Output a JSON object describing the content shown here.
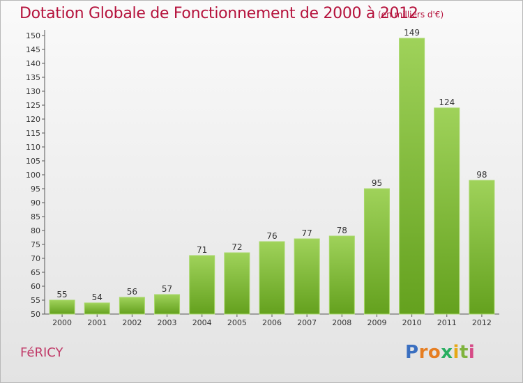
{
  "title": "Dotation Globale de Fonctionnement de 2000 à 2012",
  "subtitle": "(en milliers d'€)",
  "location": "FéRICY",
  "logo": {
    "letters": [
      "P",
      "r",
      "o",
      "x",
      "i",
      "t",
      "i"
    ],
    "colors": [
      "#3a6fc0",
      "#e67e22",
      "#e67e22",
      "#27ae60",
      "#e6a817",
      "#7fb33d",
      "#d64a86"
    ]
  },
  "colors": {
    "bar_light": "#9fd25a",
    "bar_dark": "#64a11e",
    "text": "#333333",
    "accent": "#b5123c"
  },
  "chart_data": {
    "type": "bar",
    "categories": [
      "2000",
      "2001",
      "2002",
      "2003",
      "2004",
      "2005",
      "2006",
      "2007",
      "2008",
      "2009",
      "2010",
      "2011",
      "2012"
    ],
    "values": [
      55,
      54,
      56,
      57,
      71,
      72,
      76,
      77,
      78,
      95,
      149,
      124,
      98
    ],
    "ylim": [
      50,
      150
    ],
    "yticks": [
      50,
      55,
      60,
      65,
      70,
      75,
      80,
      85,
      90,
      95,
      100,
      105,
      110,
      115,
      120,
      125,
      130,
      135,
      140,
      145,
      150
    ],
    "grid": false,
    "legend": "none"
  }
}
